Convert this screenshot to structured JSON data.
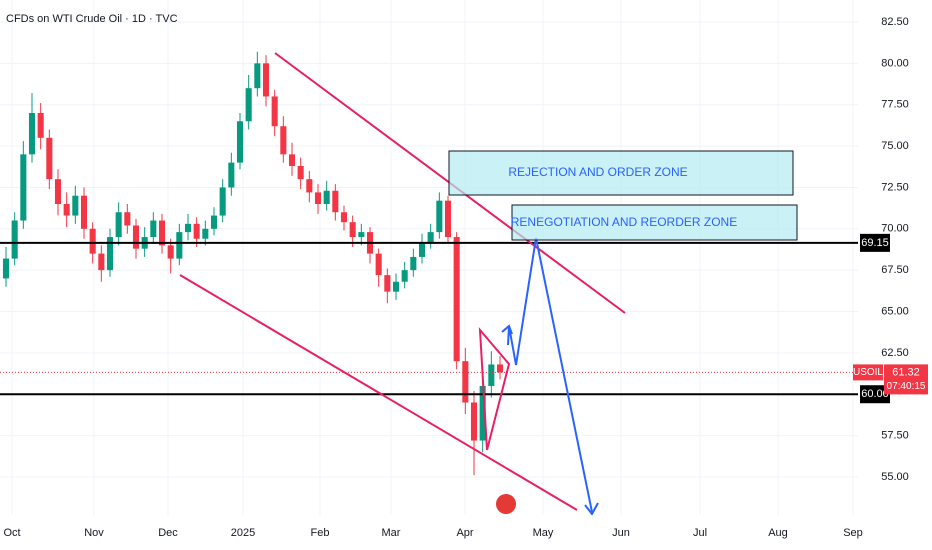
{
  "chart_data": {
    "type": "candlestick",
    "title": "CFDs on WTI Crude Oil · 1D · TVC",
    "symbol": "USOIL",
    "last_price": 61.32,
    "countdown": "07:40:15",
    "ylim": [
      52.7,
      83.83
    ],
    "yticks": [
      {
        "value": 82.5,
        "label": "82.50"
      },
      {
        "value": 80,
        "label": "80.00"
      },
      {
        "value": 77.5,
        "label": "77.50"
      },
      {
        "value": 75,
        "label": "75.00"
      },
      {
        "value": 72.5,
        "label": "72.50"
      },
      {
        "value": 70,
        "label": "70.00"
      },
      {
        "value": 67.5,
        "label": "67.50"
      },
      {
        "value": 65,
        "label": "65.00"
      },
      {
        "value": 62.5,
        "label": "62.50"
      },
      {
        "value": 57.5,
        "label": "57.50"
      },
      {
        "value": 55,
        "label": "55.00"
      }
    ],
    "xticks": [
      "Oct",
      "Nov",
      "Dec",
      "2025",
      "Feb",
      "Mar",
      "Apr",
      "May",
      "Jun",
      "Jul",
      "Aug",
      "Sep"
    ],
    "levels": [
      {
        "value": 69.15,
        "label": "69.15"
      },
      {
        "value": 60,
        "label": "60.00"
      }
    ],
    "zones": [
      "REJECTION AND ORDER ZONE",
      "RENEGOTIATION AND REORDER ZONE"
    ],
    "up_color": "#089981",
    "down_color": "#f23645",
    "open": [
      67.0,
      68.2,
      70.5,
      74.5,
      77.0,
      75.5,
      73.0,
      71.5,
      70.8,
      72.0,
      70.0,
      68.5,
      67.5,
      69.5,
      71.0,
      70.2,
      68.8,
      69.5,
      70.5,
      69.0,
      68.2,
      69.8,
      70.3,
      69.4,
      70.0,
      70.8,
      72.5,
      74.0,
      76.5,
      78.5,
      80.0,
      78.0,
      76.2,
      74.5,
      73.8,
      73.0,
      72.2,
      71.5,
      72.3,
      71.0,
      70.4,
      69.5,
      69.8,
      68.5,
      67.2,
      66.2,
      66.8,
      67.5,
      68.3,
      69.2,
      69.8,
      71.7,
      69.5,
      62.0,
      59.5,
      57.2,
      60.5,
      61.8
    ],
    "high": [
      68.9,
      71.0,
      75.3,
      78.2,
      77.6,
      76.0,
      73.6,
      72.2,
      72.6,
      72.5,
      70.4,
      69.0,
      70.0,
      71.6,
      71.5,
      70.6,
      70.1,
      71.0,
      70.9,
      69.4,
      70.3,
      70.9,
      70.7,
      70.5,
      71.3,
      73.0,
      74.6,
      77.0,
      79.3,
      80.7,
      80.5,
      78.4,
      76.8,
      75.2,
      74.3,
      73.5,
      72.7,
      72.9,
      72.7,
      71.4,
      70.8,
      70.3,
      70.1,
      68.8,
      67.6,
      67.3,
      68.0,
      68.8,
      69.7,
      70.3,
      72.2,
      72.0,
      69.8,
      62.8,
      60.2,
      61.2,
      62.6,
      62.3
    ],
    "low": [
      66.5,
      67.8,
      70.0,
      74.0,
      74.8,
      72.4,
      70.8,
      70.1,
      70.3,
      69.4,
      67.9,
      66.8,
      67.1,
      69.0,
      69.7,
      68.2,
      68.3,
      69.1,
      68.5,
      67.3,
      67.8,
      69.3,
      68.9,
      69.0,
      69.6,
      70.4,
      72.0,
      73.6,
      76.0,
      78.0,
      77.4,
      75.6,
      74.0,
      73.2,
      72.4,
      71.6,
      70.9,
      71.1,
      70.5,
      69.9,
      68.9,
      69.0,
      67.9,
      66.5,
      65.5,
      65.7,
      66.4,
      67.1,
      67.9,
      68.8,
      69.4,
      69.1,
      61.5,
      58.8,
      55.1,
      56.5,
      59.8,
      60.9
    ],
    "close": [
      68.2,
      70.5,
      74.5,
      77.0,
      75.5,
      73.0,
      71.5,
      70.8,
      72.0,
      70.0,
      68.5,
      67.5,
      69.5,
      71.0,
      70.2,
      68.8,
      69.5,
      70.5,
      69.0,
      68.2,
      69.8,
      70.3,
      69.4,
      70.0,
      70.8,
      72.5,
      74.0,
      76.5,
      78.5,
      80.0,
      78.0,
      76.2,
      74.5,
      73.8,
      73.0,
      72.2,
      71.5,
      72.3,
      71.0,
      70.4,
      69.5,
      69.8,
      68.5,
      67.2,
      66.2,
      66.8,
      67.5,
      68.3,
      69.2,
      69.8,
      71.7,
      69.5,
      62.0,
      59.5,
      57.2,
      60.5,
      61.8,
      61.32
    ]
  }
}
